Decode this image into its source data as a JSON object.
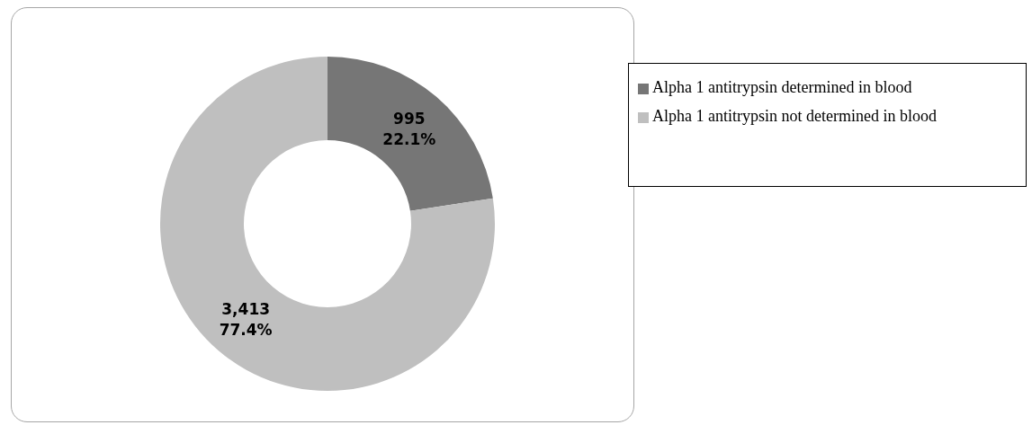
{
  "chart_data": {
    "type": "donut",
    "categories": [
      "Alpha 1 antitrypsin determined in blood",
      "Alpha 1 antitrypsin not determined in blood"
    ],
    "values": [
      995,
      3413
    ],
    "colors": [
      "#767676",
      "#bfbfbf"
    ],
    "value_labels": [
      "995\n22.1%",
      "3,413\n77.4%"
    ],
    "legend": "right"
  }
}
